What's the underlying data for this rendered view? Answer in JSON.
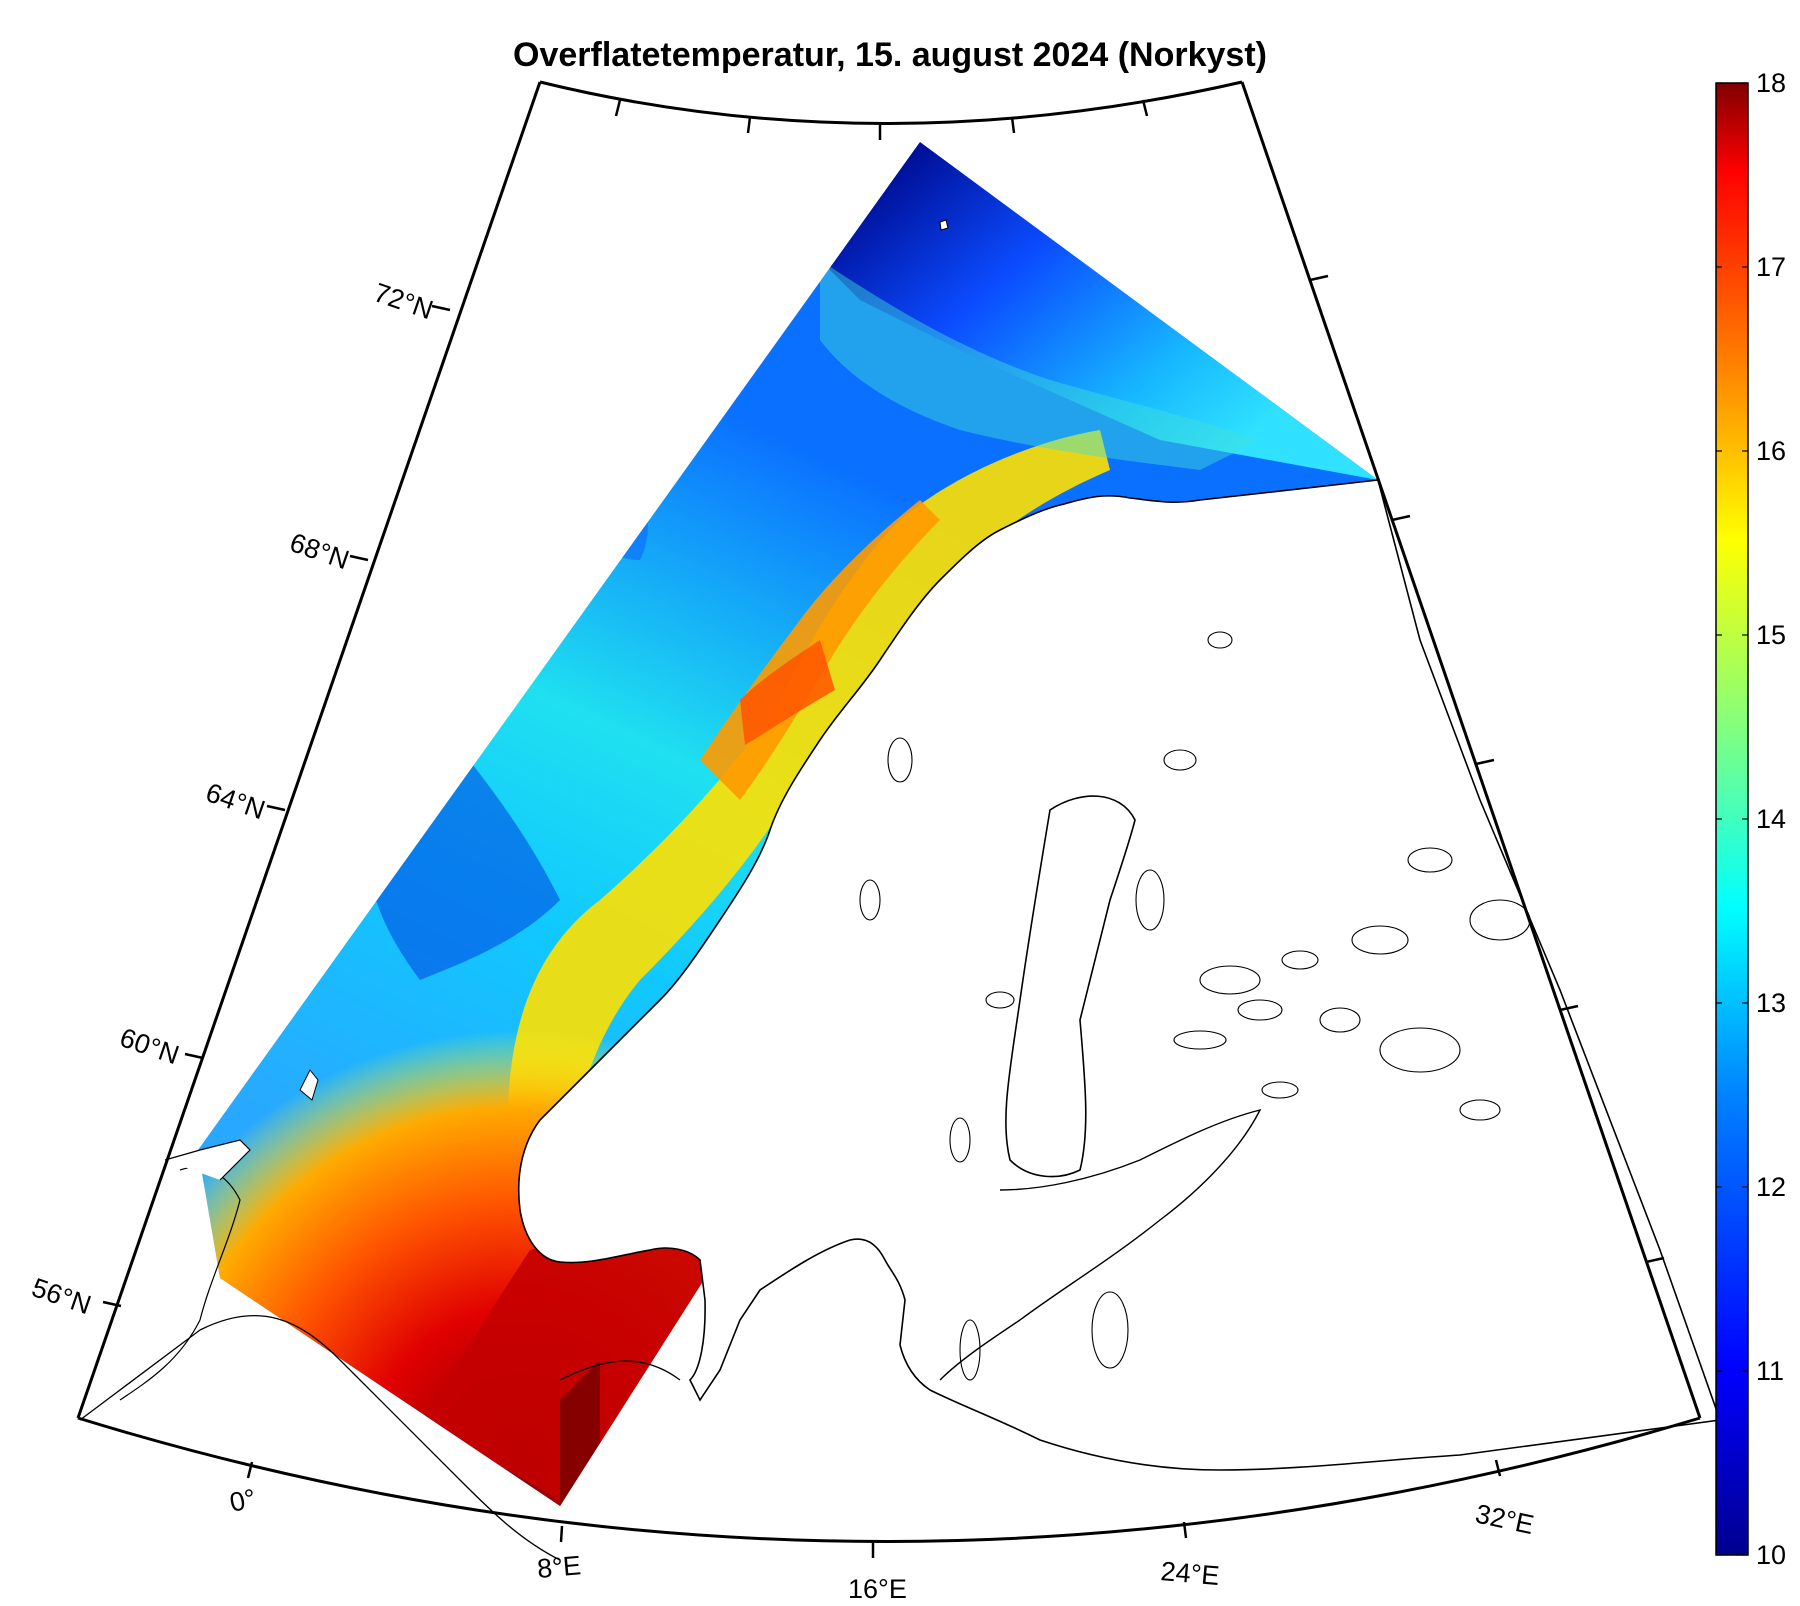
{
  "title": "Overflatetemperatur, 15. august 2024 (Norkyst)",
  "map": {
    "lat_labels": [
      "72°N",
      "68°N",
      "64°N",
      "60°N",
      "56°N"
    ],
    "lon_labels": [
      "0°",
      "8°E",
      "16°E",
      "24°E",
      "32°E"
    ]
  },
  "colorbar": {
    "min": 10,
    "max": 18,
    "tick_labels": [
      "18",
      "17",
      "16",
      "15",
      "14",
      "13",
      "12",
      "11",
      "10"
    ],
    "colormap": "jet",
    "colors": [
      "#00008f",
      "#0000ff",
      "#0080ff",
      "#00ffff",
      "#80ff80",
      "#ffff00",
      "#ff8000",
      "#ff0000",
      "#800000"
    ]
  },
  "colors": {
    "land": "#ffffff",
    "coastline": "#000000",
    "frame": "#000000"
  }
}
